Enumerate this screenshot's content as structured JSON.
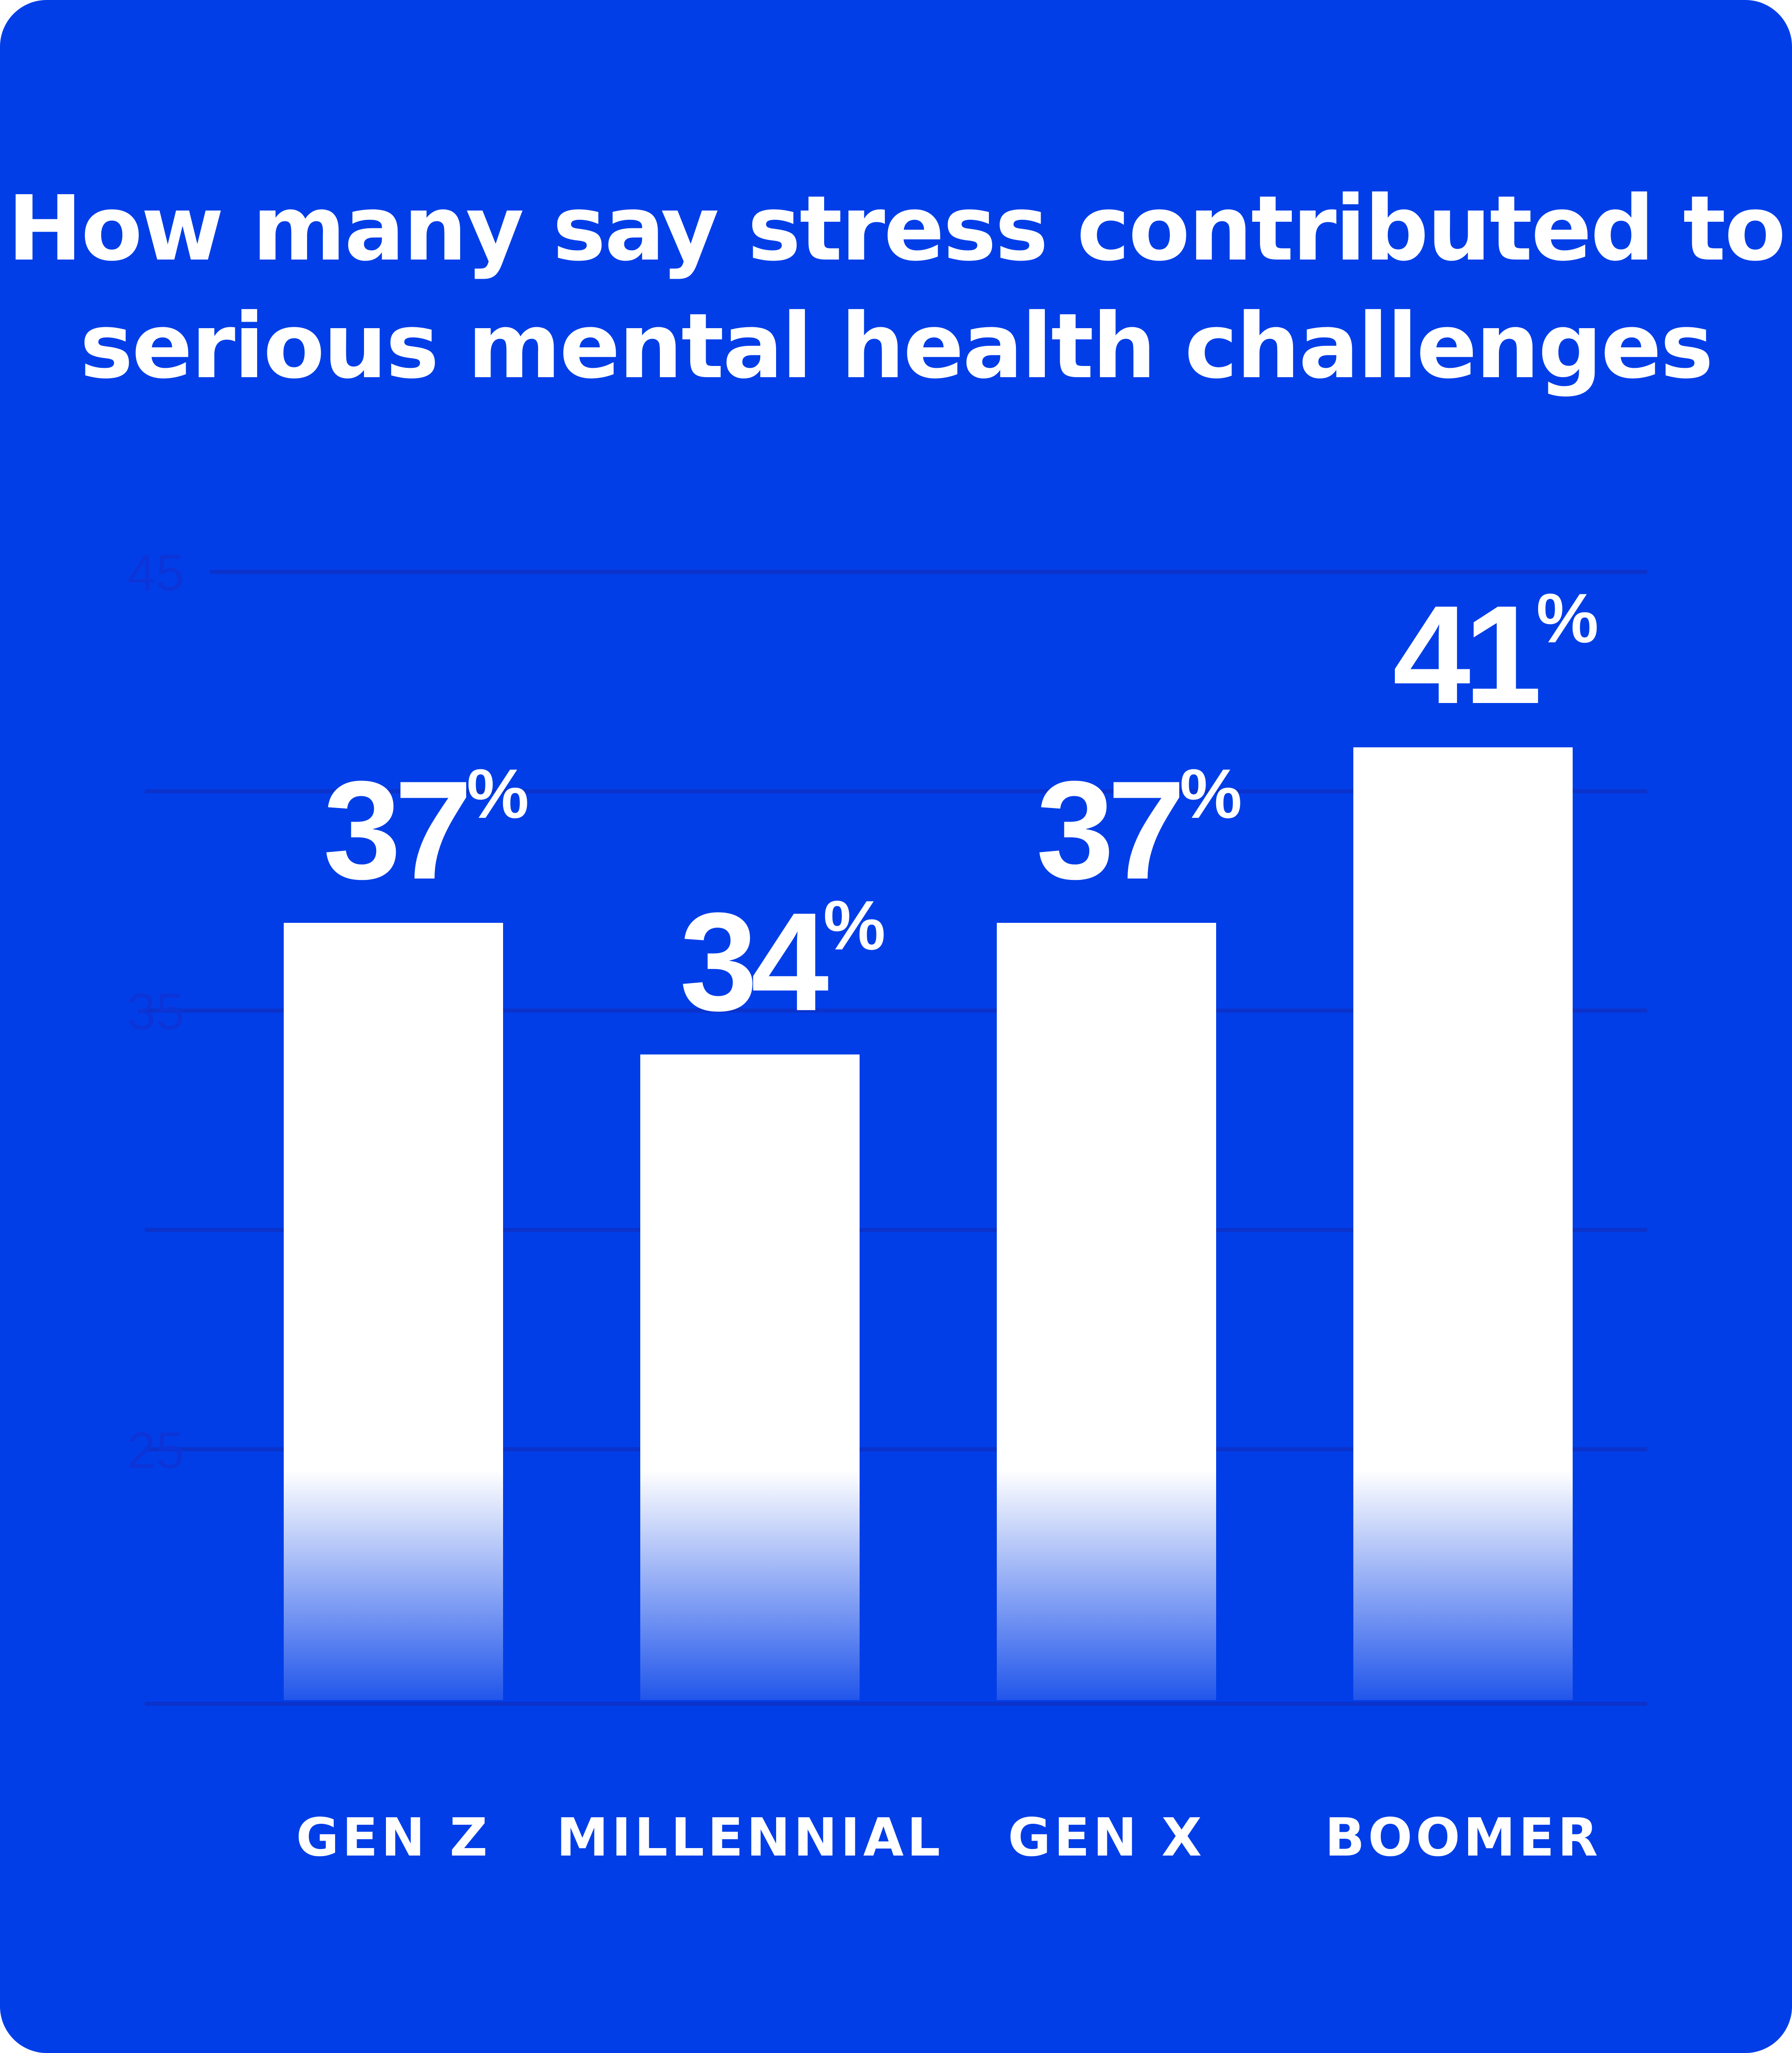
{
  "colors": {
    "background": "#023EE8",
    "bar": "#FFFFFF",
    "gridline": "#0B33CC",
    "tick_label": "#0C35D9",
    "text": "#FFFFFF"
  },
  "chart_data": {
    "type": "bar",
    "title_lines": [
      "How many say stress contributed to",
      "serious mental health challenges"
    ],
    "categories": [
      "GEN Z",
      "MILLENNIAL",
      "GEN X",
      "BOOMER"
    ],
    "values": [
      37,
      34,
      37,
      41
    ],
    "value_labels": [
      {
        "number": "37",
        "suffix": "%"
      },
      {
        "number": "34",
        "suffix": "%"
      },
      {
        "number": "37",
        "suffix": "%"
      },
      {
        "number": "41",
        "suffix": "%"
      }
    ],
    "y_ticks": [
      45,
      35,
      25
    ],
    "ylim": [
      19.2,
      45
    ],
    "grid": true,
    "legend": "none"
  }
}
